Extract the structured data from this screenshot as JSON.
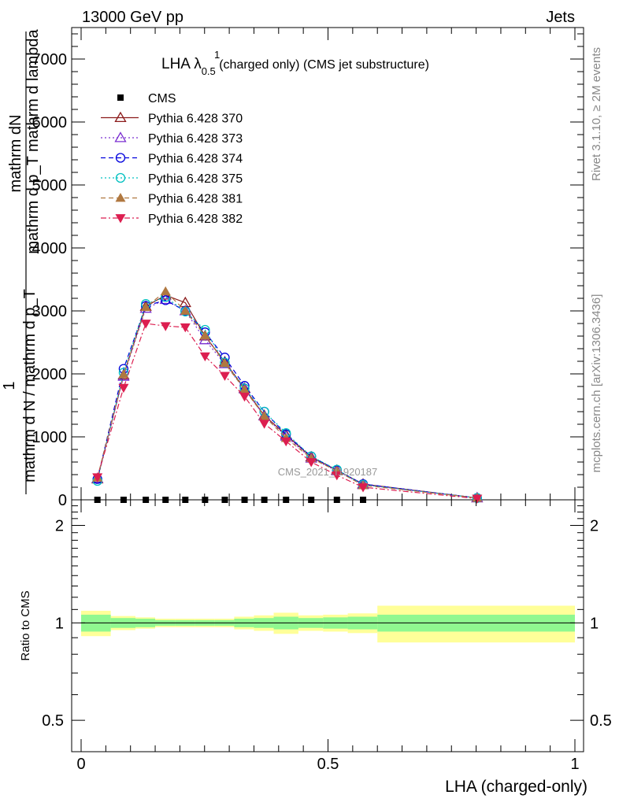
{
  "header": {
    "left": "13000 GeV pp",
    "right": "Jets"
  },
  "side_labels": {
    "rivet": "Rivet 3.1.10, ≥ 2M events",
    "mcplots": "mcplots.cern.ch [arXiv:1306.3436]"
  },
  "watermark": "CMS_2021_I1920187",
  "chart_data": [
    {
      "type": "line",
      "title_main": "LHA λ",
      "title_sup": "1",
      "title_sub": "0.5",
      "title_rest": " (charged only) (CMS jet substructure)",
      "ylabel_top": "mathrm dN",
      "ylabel_top2": "mathrm d p_T mathrm d lambda",
      "ylabel_one": "1",
      "ylabel_bottom": "mathrm d N / mathrm d p_T",
      "xlim": [
        0,
        1
      ],
      "ylim": [
        0,
        7500
      ],
      "yticks": [
        0,
        1000,
        2000,
        3000,
        4000,
        5000,
        6000,
        7000
      ],
      "ytick_labels": [
        "0",
        "1000",
        "2000",
        "3000",
        "4000",
        "5000",
        "6000",
        "7000"
      ],
      "legend_position": "top-left",
      "x": [
        0.033,
        0.086,
        0.131,
        0.171,
        0.211,
        0.251,
        0.291,
        0.331,
        0.371,
        0.415,
        0.466,
        0.518,
        0.571,
        0.802
      ],
      "series": [
        {
          "name": "CMS",
          "color": "#000000",
          "marker": "square",
          "dash": "none",
          "values": [
            0,
            0,
            0,
            0,
            0,
            0,
            0,
            0,
            0,
            0,
            0,
            0,
            0,
            null
          ]
        },
        {
          "name": "Pythia 6.428 370",
          "color": "#8b1a1a",
          "marker": "triangle-open",
          "dash": "solid",
          "values": [
            330,
            1980,
            3070,
            3250,
            3130,
            2600,
            2190,
            1770,
            1340,
            1030,
            680,
            470,
            250,
            30
          ]
        },
        {
          "name": "Pythia 6.428 373",
          "color": "#7b2fd0",
          "marker": "triangle-open",
          "dash": "dotted",
          "values": [
            340,
            1960,
            3040,
            3180,
            3000,
            2540,
            2160,
            1760,
            1330,
            1010,
            660,
            460,
            240,
            30
          ]
        },
        {
          "name": "Pythia 6.428 374",
          "color": "#0000dd",
          "marker": "circle-open",
          "dash": "dashed",
          "values": [
            330,
            2080,
            3080,
            3170,
            3000,
            2660,
            2260,
            1810,
            1400,
            1040,
            690,
            470,
            250,
            30
          ]
        },
        {
          "name": "Pythia 6.428 375",
          "color": "#00c0c0",
          "marker": "circle-open",
          "dash": "dotted",
          "values": [
            300,
            2020,
            3110,
            3220,
            2990,
            2700,
            2180,
            1770,
            1400,
            1060,
            690,
            480,
            240,
            30
          ]
        },
        {
          "name": "Pythia 6.428 381",
          "color": "#b07840",
          "marker": "triangle-filled",
          "dash": "dashed",
          "values": [
            350,
            1990,
            3060,
            3310,
            3000,
            2610,
            2170,
            1750,
            1330,
            980,
            660,
            460,
            230,
            30
          ]
        },
        {
          "name": "Pythia 6.428 382",
          "color": "#dc1e50",
          "marker": "triangle-down-filled",
          "dash": "dashdot",
          "values": [
            360,
            1780,
            2800,
            2760,
            2740,
            2280,
            1970,
            1640,
            1210,
            930,
            600,
            390,
            200,
            20
          ]
        }
      ]
    },
    {
      "type": "area",
      "ylabel": "Ratio to CMS",
      "xlabel": "LHA (charged-only)",
      "xlim": [
        0,
        1
      ],
      "ylim": [
        0.4,
        2.4
      ],
      "log_scale": true,
      "yticks": [
        0.5,
        1,
        2
      ],
      "ytick_labels": [
        "0.5",
        "1",
        "2"
      ],
      "xticks": [
        0,
        0.5,
        1
      ],
      "xtick_labels": [
        "0",
        "0.5",
        "1"
      ],
      "bins": [
        0,
        0.06,
        0.11,
        0.15,
        0.19,
        0.23,
        0.27,
        0.31,
        0.35,
        0.39,
        0.44,
        0.49,
        0.54,
        0.6,
        1.0
      ],
      "band_inner": {
        "color": "#90f890",
        "half_width": [
          0.06,
          0.035,
          0.03,
          0.02,
          0.02,
          0.02,
          0.02,
          0.03,
          0.035,
          0.045,
          0.035,
          0.04,
          0.045,
          0.06
        ]
      },
      "band_outer": {
        "color": "#ffff99",
        "half_width": [
          0.09,
          0.05,
          0.04,
          0.03,
          0.03,
          0.03,
          0.03,
          0.045,
          0.055,
          0.075,
          0.055,
          0.06,
          0.07,
          0.13
        ]
      },
      "reference_value": 1
    }
  ]
}
